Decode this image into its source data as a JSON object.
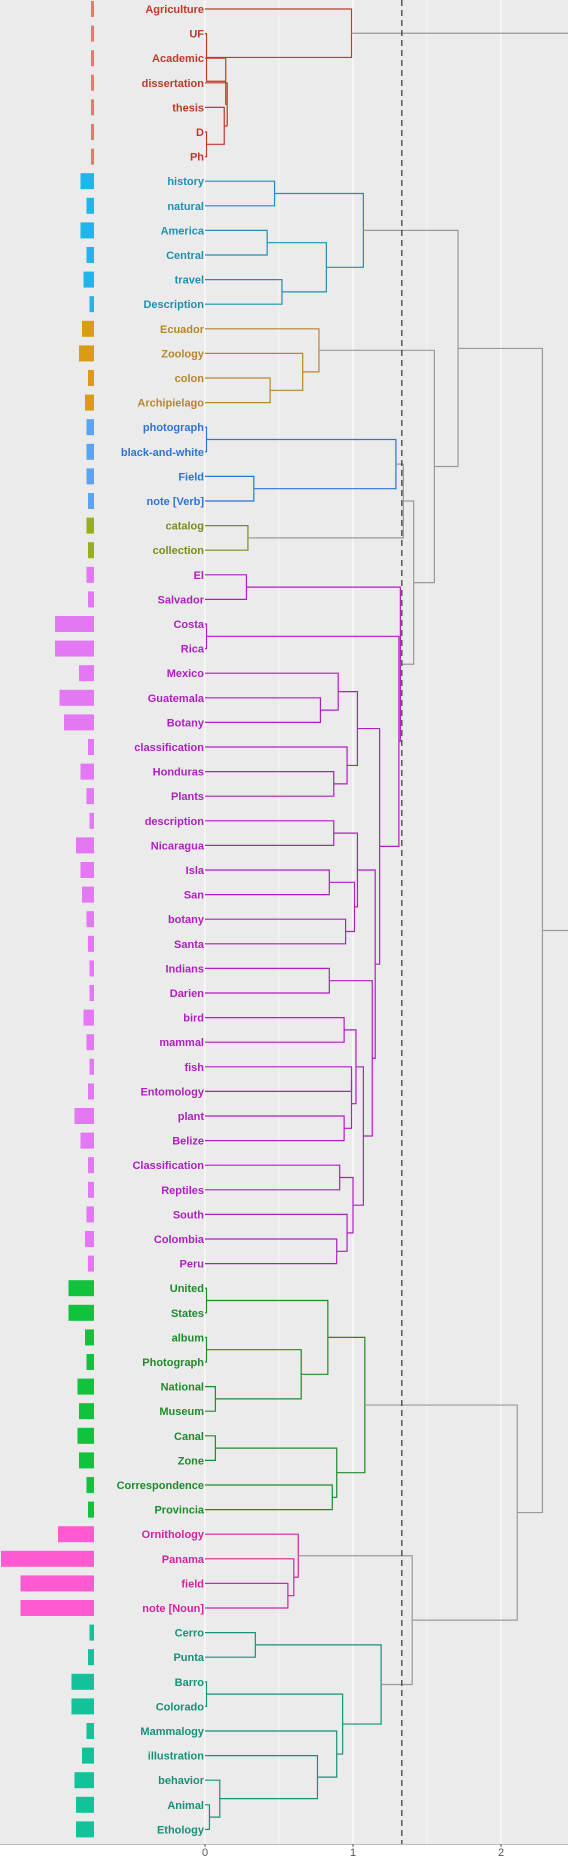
{
  "chart_data": {
    "type": "dendrogram",
    "title": "",
    "xlabel": "",
    "ylabel": "",
    "xlim": [
      0,
      2.5
    ],
    "xticks": [
      0,
      1,
      2
    ],
    "cut_height": 1.33,
    "grid": true,
    "colors": {
      "red": "#c0392b",
      "teal": "#1f8fb4",
      "gold": "#b8862c",
      "blue": "#2e74d6",
      "olive": "#7a8c1a",
      "purple": "#b01fc2",
      "green": "#1e8c29",
      "magenta": "#d6229d",
      "seagreen": "#17917a",
      "gray": "#9a9a9a"
    },
    "bar_colors": {
      "red": "#f5726d",
      "teal": "#1eb8e8",
      "gold": "#d99c12",
      "blue": "#5ea2f2",
      "olive": "#9aae1c",
      "purple": "#e278f2",
      "green": "#10c23c",
      "magenta": "#ff5ad0",
      "seagreen": "#12c29a"
    },
    "leaves": [
      {
        "label": "Agriculture",
        "cluster": "red",
        "bar": 0.02
      },
      {
        "label": "UF",
        "cluster": "red",
        "bar": 0.02
      },
      {
        "label": "Academic",
        "cluster": "red",
        "bar": 0.02
      },
      {
        "label": "dissertation",
        "cluster": "red",
        "bar": 0.02
      },
      {
        "label": "thesis",
        "cluster": "red",
        "bar": 0.02
      },
      {
        "label": "D",
        "cluster": "red",
        "bar": 0.02
      },
      {
        "label": "Ph",
        "cluster": "red",
        "bar": 0.02
      },
      {
        "label": "history",
        "cluster": "teal",
        "bar": 0.09
      },
      {
        "label": "natural",
        "cluster": "teal",
        "bar": 0.05
      },
      {
        "label": "America",
        "cluster": "teal",
        "bar": 0.09
      },
      {
        "label": "Central",
        "cluster": "teal",
        "bar": 0.05
      },
      {
        "label": "travel",
        "cluster": "teal",
        "bar": 0.07
      },
      {
        "label": "Description",
        "cluster": "teal",
        "bar": 0.03
      },
      {
        "label": "Ecuador",
        "cluster": "gold",
        "bar": 0.08
      },
      {
        "label": "Zoology",
        "cluster": "gold",
        "bar": 0.1
      },
      {
        "label": "colon",
        "cluster": "gold",
        "bar": 0.04
      },
      {
        "label": "Archipielago",
        "cluster": "gold",
        "bar": 0.06
      },
      {
        "label": "photograph",
        "cluster": "blue",
        "bar": 0.05
      },
      {
        "label": "black-and-white",
        "cluster": "blue",
        "bar": 0.05
      },
      {
        "label": "Field",
        "cluster": "blue",
        "bar": 0.05
      },
      {
        "label": "note [Verb]",
        "cluster": "blue",
        "bar": 0.04
      },
      {
        "label": "catalog",
        "cluster": "olive",
        "bar": 0.05
      },
      {
        "label": "collection",
        "cluster": "olive",
        "bar": 0.04
      },
      {
        "label": "El",
        "cluster": "purple",
        "bar": 0.05
      },
      {
        "label": "Salvador",
        "cluster": "purple",
        "bar": 0.04
      },
      {
        "label": "Costa",
        "cluster": "purple",
        "bar": 0.26
      },
      {
        "label": "Rica",
        "cluster": "purple",
        "bar": 0.26
      },
      {
        "label": "Mexico",
        "cluster": "purple",
        "bar": 0.1
      },
      {
        "label": "Guatemala",
        "cluster": "purple",
        "bar": 0.23
      },
      {
        "label": "Botany",
        "cluster": "purple",
        "bar": 0.2
      },
      {
        "label": "classification",
        "cluster": "purple",
        "bar": 0.04
      },
      {
        "label": "Honduras",
        "cluster": "purple",
        "bar": 0.09
      },
      {
        "label": "Plants",
        "cluster": "purple",
        "bar": 0.05
      },
      {
        "label": "description",
        "cluster": "purple",
        "bar": 0.03
      },
      {
        "label": "Nicaragua",
        "cluster": "purple",
        "bar": 0.12
      },
      {
        "label": "Isla",
        "cluster": "purple",
        "bar": 0.09
      },
      {
        "label": "San",
        "cluster": "purple",
        "bar": 0.08
      },
      {
        "label": "botany",
        "cluster": "purple",
        "bar": 0.05
      },
      {
        "label": "Santa",
        "cluster": "purple",
        "bar": 0.04
      },
      {
        "label": "Indians",
        "cluster": "purple",
        "bar": 0.03
      },
      {
        "label": "Darien",
        "cluster": "purple",
        "bar": 0.03
      },
      {
        "label": "bird",
        "cluster": "purple",
        "bar": 0.07
      },
      {
        "label": "mammal",
        "cluster": "purple",
        "bar": 0.05
      },
      {
        "label": "fish",
        "cluster": "purple",
        "bar": 0.03
      },
      {
        "label": "Entomology",
        "cluster": "purple",
        "bar": 0.04
      },
      {
        "label": "plant",
        "cluster": "purple",
        "bar": 0.13
      },
      {
        "label": "Belize",
        "cluster": "purple",
        "bar": 0.09
      },
      {
        "label": "Classification",
        "cluster": "purple",
        "bar": 0.04
      },
      {
        "label": "Reptiles",
        "cluster": "purple",
        "bar": 0.04
      },
      {
        "label": "South",
        "cluster": "purple",
        "bar": 0.05
      },
      {
        "label": "Colombia",
        "cluster": "purple",
        "bar": 0.06
      },
      {
        "label": "Peru",
        "cluster": "purple",
        "bar": 0.04
      },
      {
        "label": "United",
        "cluster": "green",
        "bar": 0.17
      },
      {
        "label": "States",
        "cluster": "green",
        "bar": 0.17
      },
      {
        "label": "album",
        "cluster": "green",
        "bar": 0.06
      },
      {
        "label": "Photograph",
        "cluster": "green",
        "bar": 0.05
      },
      {
        "label": "National",
        "cluster": "green",
        "bar": 0.11
      },
      {
        "label": "Museum",
        "cluster": "green",
        "bar": 0.1
      },
      {
        "label": "Canal",
        "cluster": "green",
        "bar": 0.11
      },
      {
        "label": "Zone",
        "cluster": "green",
        "bar": 0.1
      },
      {
        "label": "Correspondence",
        "cluster": "green",
        "bar": 0.05
      },
      {
        "label": "Provincia",
        "cluster": "green",
        "bar": 0.04
      },
      {
        "label": "Ornithology",
        "cluster": "magenta",
        "bar": 0.24
      },
      {
        "label": "Panama",
        "cluster": "magenta",
        "bar": 0.62
      },
      {
        "label": "field",
        "cluster": "magenta",
        "bar": 0.49
      },
      {
        "label": "note [Noun]",
        "cluster": "magenta",
        "bar": 0.49
      },
      {
        "label": "Cerro",
        "cluster": "seagreen",
        "bar": 0.03
      },
      {
        "label": "Punta",
        "cluster": "seagreen",
        "bar": 0.04
      },
      {
        "label": "Barro",
        "cluster": "seagreen",
        "bar": 0.15
      },
      {
        "label": "Colorado",
        "cluster": "seagreen",
        "bar": 0.15
      },
      {
        "label": "Mammalogy",
        "cluster": "seagreen",
        "bar": 0.05
      },
      {
        "label": "illustration",
        "cluster": "seagreen",
        "bar": 0.08
      },
      {
        "label": "behavior",
        "cluster": "seagreen",
        "bar": 0.13
      },
      {
        "label": "Animal",
        "cluster": "seagreen",
        "bar": 0.12
      },
      {
        "label": "Ethology",
        "cluster": "seagreen",
        "bar": 0.12
      }
    ],
    "merges": [
      {
        "a": "D",
        "b": "Ph",
        "h": 0.01,
        "c": "red"
      },
      {
        "a": "thesis",
        "b": "m0",
        "h": 0.13,
        "c": "red"
      },
      {
        "a": "dissertation",
        "b": "m1",
        "h": 0.15,
        "c": "red"
      },
      {
        "a": "Academic",
        "b": "m2",
        "h": 0.14,
        "c": "red"
      },
      {
        "a": "UF",
        "b": "m3",
        "h": 0.01,
        "c": "red"
      },
      {
        "a": "Agriculture",
        "b": "m4",
        "h": 0.99,
        "c": "red"
      },
      {
        "a": "history",
        "b": "natural",
        "h": 0.47,
        "c": "teal"
      },
      {
        "a": "America",
        "b": "Central",
        "h": 0.42,
        "c": "teal"
      },
      {
        "a": "travel",
        "b": "Description",
        "h": 0.52,
        "c": "teal"
      },
      {
        "a": "m7",
        "b": "m8",
        "h": 0.82,
        "c": "teal"
      },
      {
        "a": "m6",
        "b": "m9",
        "h": 1.07,
        "c": "teal"
      },
      {
        "a": "colon",
        "b": "Archipielago",
        "h": 0.44,
        "c": "gold"
      },
      {
        "a": "Zoology",
        "b": "m11",
        "h": 0.66,
        "c": "gold"
      },
      {
        "a": "Ecuador",
        "b": "m12",
        "h": 0.77,
        "c": "gold"
      },
      {
        "a": "Field",
        "b": "note [Verb]",
        "h": 0.33,
        "c": "blue"
      },
      {
        "a": "photograph",
        "b": "black-and-white",
        "h": 0.01,
        "c": "blue"
      },
      {
        "a": "m15",
        "b": "m14",
        "h": 1.29,
        "c": "blue"
      },
      {
        "a": "catalog",
        "b": "collection",
        "h": 0.29,
        "c": "olive"
      },
      {
        "a": "El",
        "b": "Salvador",
        "h": 0.28,
        "c": "purple"
      },
      {
        "a": "Costa",
        "b": "Rica",
        "h": 0.01,
        "c": "purple"
      },
      {
        "a": "Guatemala",
        "b": "Botany",
        "h": 0.78,
        "c": "purple"
      },
      {
        "a": "Mexico",
        "b": "m20",
        "h": 0.9,
        "c": "purple"
      },
      {
        "a": "Honduras",
        "b": "Plants",
        "h": 0.87,
        "c": "purple"
      },
      {
        "a": "classification",
        "b": "m22",
        "h": 0.96,
        "c": "purple"
      },
      {
        "a": "m21",
        "b": "m23",
        "h": 1.03,
        "c": "purple"
      },
      {
        "a": "description",
        "b": "Nicaragua",
        "h": 0.87,
        "c": "purple"
      },
      {
        "a": "Isla",
        "b": "San",
        "h": 0.84,
        "c": "purple"
      },
      {
        "a": "botany",
        "b": "Santa",
        "h": 0.95,
        "c": "purple"
      },
      {
        "a": "m26",
        "b": "m27",
        "h": 1.01,
        "c": "purple"
      },
      {
        "a": "m25",
        "b": "m28",
        "h": 1.03,
        "c": "purple"
      },
      {
        "a": "Indians",
        "b": "Darien",
        "h": 0.84,
        "c": "purple"
      },
      {
        "a": "bird",
        "b": "mammal",
        "h": 0.94,
        "c": "purple"
      },
      {
        "a": "fish",
        "b": "Entomology",
        "h": 0.99,
        "c": "purple"
      },
      {
        "a": "plant",
        "b": "Belize",
        "h": 0.94,
        "c": "purple"
      },
      {
        "a": "m32",
        "b": "m33",
        "h": 0.99,
        "c": "purple"
      },
      {
        "a": "m31",
        "b": "m34",
        "h": 1.02,
        "c": "purple"
      },
      {
        "a": "Classification",
        "b": "Reptiles",
        "h": 0.91,
        "c": "purple"
      },
      {
        "a": "Colombia",
        "b": "Peru",
        "h": 0.89,
        "c": "purple"
      },
      {
        "a": "South",
        "b": "m37",
        "h": 0.96,
        "c": "purple"
      },
      {
        "a": "m36",
        "b": "m38",
        "h": 1.0,
        "c": "purple"
      },
      {
        "a": "m35",
        "b": "m39",
        "h": 1.07,
        "c": "purple"
      },
      {
        "a": "m30",
        "b": "m40",
        "h": 1.13,
        "c": "purple"
      },
      {
        "a": "m29",
        "b": "m41",
        "h": 1.15,
        "c": "purple"
      },
      {
        "a": "m24",
        "b": "m42",
        "h": 1.18,
        "c": "purple"
      },
      {
        "a": "m19",
        "b": "m43",
        "h": 1.31,
        "c": "purple"
      },
      {
        "a": "m18",
        "b": "m44",
        "h": 1.32,
        "c": "purple"
      },
      {
        "a": "United",
        "b": "States",
        "h": 0.01,
        "c": "green"
      },
      {
        "a": "album",
        "b": "Photograph",
        "h": 0.01,
        "c": "green"
      },
      {
        "a": "National",
        "b": "Museum",
        "h": 0.07,
        "c": "green"
      },
      {
        "a": "m47",
        "b": "m48",
        "h": 0.65,
        "c": "green"
      },
      {
        "a": "m46",
        "b": "m49",
        "h": 0.83,
        "c": "green"
      },
      {
        "a": "Canal",
        "b": "Zone",
        "h": 0.07,
        "c": "green"
      },
      {
        "a": "Correspondence",
        "b": "Provincia",
        "h": 0.86,
        "c": "green"
      },
      {
        "a": "m51",
        "b": "m52",
        "h": 0.89,
        "c": "green"
      },
      {
        "a": "m50",
        "b": "m53",
        "h": 1.08,
        "c": "green"
      },
      {
        "a": "field",
        "b": "note [Noun]",
        "h": 0.56,
        "c": "magenta"
      },
      {
        "a": "Panama",
        "b": "m55",
        "h": 0.6,
        "c": "magenta"
      },
      {
        "a": "Ornithology",
        "b": "m56",
        "h": 0.63,
        "c": "magenta"
      },
      {
        "a": "Cerro",
        "b": "Punta",
        "h": 0.34,
        "c": "seagreen"
      },
      {
        "a": "Barro",
        "b": "Colorado",
        "h": 0.01,
        "c": "seagreen"
      },
      {
        "a": "Animal",
        "b": "Ethology",
        "h": 0.03,
        "c": "seagreen"
      },
      {
        "a": "behavior",
        "b": "m60",
        "h": 0.1,
        "c": "seagreen"
      },
      {
        "a": "illustration",
        "b": "m61",
        "h": 0.76,
        "c": "seagreen"
      },
      {
        "a": "Mammalogy",
        "b": "m62",
        "h": 0.89,
        "c": "seagreen"
      },
      {
        "a": "m59",
        "b": "m63",
        "h": 0.93,
        "c": "seagreen"
      },
      {
        "a": "m58",
        "b": "m64",
        "h": 1.19,
        "c": "seagreen"
      },
      {
        "a": "m57",
        "b": "m65",
        "h": 1.4,
        "c": "gray"
      },
      {
        "a": "m54",
        "b": "m66",
        "h": 2.11,
        "c": "gray"
      },
      {
        "a": "m16",
        "b": "m17",
        "h": 1.34,
        "c": "gray"
      },
      {
        "a": "m45",
        "b": "m68",
        "h": 1.41,
        "c": "gray"
      },
      {
        "a": "m13",
        "b": "m69",
        "h": 1.55,
        "c": "gray"
      },
      {
        "a": "m10",
        "b": "m70",
        "h": 1.71,
        "c": "gray"
      },
      {
        "a": "m71",
        "b": "m67",
        "h": 2.28,
        "c": "gray"
      },
      {
        "a": "m5",
        "b": "m72",
        "h": 2.48,
        "c": "gray"
      }
    ]
  }
}
